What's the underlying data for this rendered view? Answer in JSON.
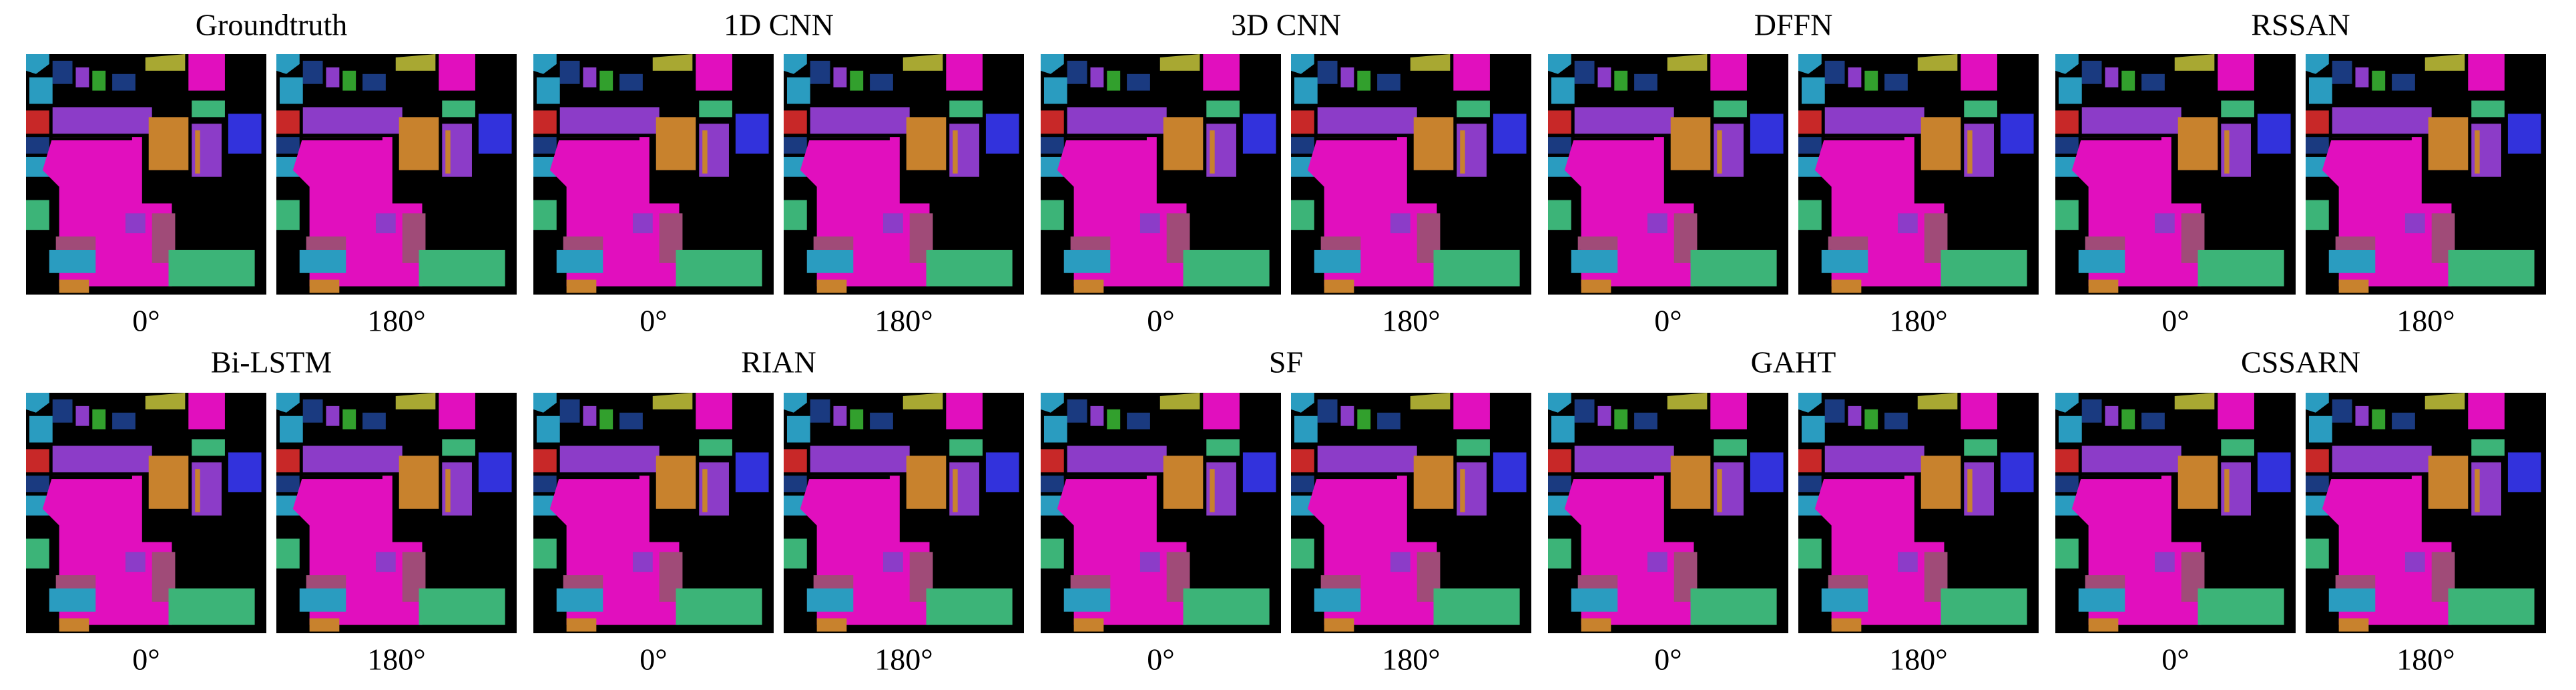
{
  "panels": [
    {
      "title": "Groundtruth",
      "maps": [
        {
          "label": "0°"
        },
        {
          "label": "180°"
        }
      ]
    },
    {
      "title": "1D CNN",
      "maps": [
        {
          "label": "0°"
        },
        {
          "label": "180°"
        }
      ]
    },
    {
      "title": "3D CNN",
      "maps": [
        {
          "label": "0°"
        },
        {
          "label": "180°"
        }
      ]
    },
    {
      "title": "DFFN",
      "maps": [
        {
          "label": "0°"
        },
        {
          "label": "180°"
        }
      ]
    },
    {
      "title": "RSSAN",
      "maps": [
        {
          "label": "0°"
        },
        {
          "label": "180°"
        }
      ]
    },
    {
      "title": "Bi-LSTM",
      "maps": [
        {
          "label": "0°"
        },
        {
          "label": "180°"
        }
      ]
    },
    {
      "title": "RIAN",
      "maps": [
        {
          "label": "0°"
        },
        {
          "label": "180°"
        }
      ]
    },
    {
      "title": "SF",
      "maps": [
        {
          "label": "0°"
        },
        {
          "label": "180°"
        }
      ]
    },
    {
      "title": "GAHT",
      "maps": [
        {
          "label": "0°"
        },
        {
          "label": "180°"
        }
      ]
    },
    {
      "title": "CSSARN",
      "maps": [
        {
          "label": "0°"
        },
        {
          "label": "180°"
        }
      ]
    }
  ]
}
